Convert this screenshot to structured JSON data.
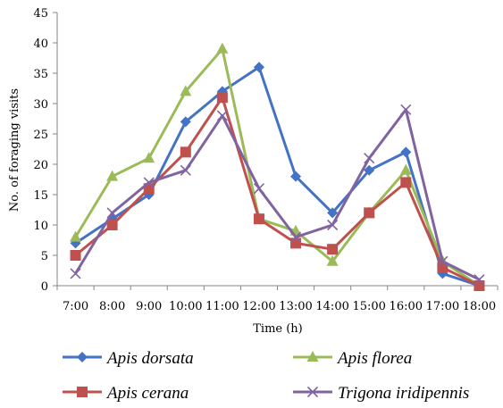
{
  "chart_data": {
    "type": "line",
    "title": "",
    "xlabel": "Time (h)",
    "ylabel": "No. of foraging visits",
    "ylim": [
      0,
      45
    ],
    "yticks": [
      0,
      5,
      10,
      15,
      20,
      25,
      30,
      35,
      40,
      45
    ],
    "categories": [
      "7:00",
      "8:00",
      "9:00",
      "10:00",
      "11:00",
      "12:00",
      "13:00",
      "14:00",
      "15:00",
      "16:00",
      "17:00",
      "18:00"
    ],
    "grid": false,
    "legend_position": "bottom",
    "series": [
      {
        "name": "Apis dorsata",
        "color": "#4472C4",
        "marker": "diamond",
        "values": [
          7,
          11,
          15,
          27,
          32,
          36,
          18,
          12,
          19,
          22,
          2,
          0
        ]
      },
      {
        "name": "Apis florea",
        "color": "#9BBB59",
        "marker": "triangle",
        "values": [
          8,
          18,
          21,
          32,
          39,
          11,
          9,
          4,
          12,
          19,
          4,
          0
        ]
      },
      {
        "name": "Apis cerana",
        "color": "#C0504D",
        "marker": "square",
        "values": [
          5,
          10,
          16,
          22,
          31,
          11,
          7,
          6,
          12,
          17,
          3,
          0
        ]
      },
      {
        "name": "Trigona iridipennis",
        "color": "#8064A2",
        "marker": "x",
        "values": [
          2,
          12,
          17,
          19,
          28,
          16,
          8,
          10,
          21,
          29,
          4,
          1
        ]
      }
    ]
  }
}
